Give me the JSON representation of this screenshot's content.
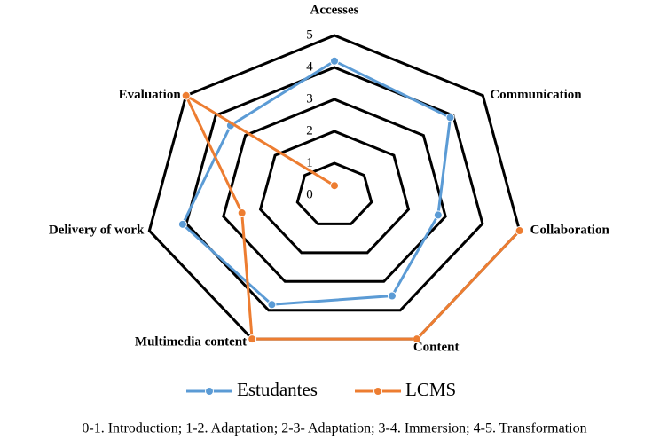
{
  "chart_data": {
    "type": "radar",
    "categories": [
      "Accesses",
      "Communication",
      "Collaboration",
      "Content",
      "Multimedia content",
      "Delivery of work",
      "Evaluation"
    ],
    "series": [
      {
        "name": "Estudantes",
        "color": "#5b9bd5",
        "values": [
          4.2,
          3.9,
          2.8,
          3.5,
          3.8,
          4.1,
          3.5
        ]
      },
      {
        "name": "LCMS",
        "color": "#ed7d31",
        "values": [
          0.3,
          null,
          5,
          5,
          5,
          2.5,
          5
        ]
      }
    ],
    "rlim": [
      0,
      5
    ],
    "rticks": [
      0,
      1,
      2,
      3,
      4,
      5
    ],
    "legend": "bottom",
    "note": "0-1. Introduction; 1-2. Adaptation; 2-3- Adaptation; 3-4. Immersion; 4-5. Transformation"
  }
}
